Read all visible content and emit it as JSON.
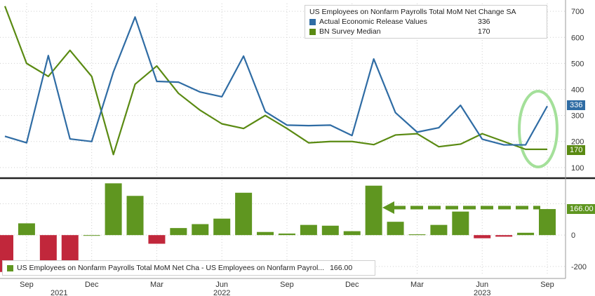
{
  "colors": {
    "actual": "#2f6ca4",
    "survey": "#5a8a12",
    "bar_pos": "#5f9620",
    "bar_neg": "#c1273b",
    "highlight": "#a4e09a"
  },
  "legend_top": {
    "title": "US Employees on Nonfarm Payrolls Total MoM Net Change SA",
    "entries": [
      {
        "label": "Actual Economic Release Values",
        "value": "336"
      },
      {
        "label": "BN Survey Median",
        "value": "170"
      }
    ]
  },
  "legend_bottom": {
    "label": "US Employees on Nonfarm Payrolls Total MoM Net Cha - US Employees on Nonfarm Payrol...",
    "value": "166.00"
  },
  "tags": {
    "actual": "336",
    "survey": "170",
    "diff": "166.00"
  },
  "chart_data": [
    {
      "type": "line",
      "x": [
        "2021-08",
        "2021-09",
        "2021-10",
        "2021-11",
        "2021-12",
        "2022-01",
        "2022-02",
        "2022-03",
        "2022-04",
        "2022-05",
        "2022-06",
        "2022-07",
        "2022-08",
        "2022-09",
        "2022-10",
        "2022-11",
        "2022-12",
        "2023-01",
        "2023-02",
        "2023-03",
        "2023-04",
        "2023-05",
        "2023-06",
        "2023-07",
        "2023-08",
        "2023-09"
      ],
      "series": [
        {
          "name": "Actual Economic Release Values",
          "values": [
            220,
            195,
            530,
            210,
            200,
            467,
            678,
            431,
            428,
            390,
            372,
            528,
            315,
            263,
            261,
            263,
            223,
            517,
            311,
            236,
            253,
            339,
            209,
            187,
            187,
            336
          ]
        },
        {
          "name": "BN Survey Median",
          "values": [
            720,
            500,
            450,
            550,
            450,
            150,
            420,
            490,
            385,
            320,
            268,
            250,
            300,
            250,
            195,
            200,
            200,
            188,
            225,
            230,
            180,
            190,
            230,
            200,
            170,
            170
          ]
        }
      ],
      "y_ticks": [
        "100",
        "200",
        "300",
        "400",
        "500",
        "600",
        "700"
      ],
      "ylim": [
        70,
        730
      ]
    },
    {
      "type": "bar",
      "x": [
        "2021-08",
        "2021-09",
        "2021-10",
        "2021-11",
        "2021-12",
        "2022-01",
        "2022-02",
        "2022-03",
        "2022-04",
        "2022-05",
        "2022-06",
        "2022-07",
        "2022-08",
        "2022-09",
        "2022-10",
        "2022-11",
        "2022-12",
        "2023-01",
        "2023-02",
        "2023-03",
        "2023-04",
        "2023-05",
        "2023-06",
        "2023-07",
        "2023-08",
        "2023-09"
      ],
      "series": [
        {
          "name": "US Employees on Nonfarm Payrolls Total MoM Net Cha - US Employees on Nonfarm Payrol...",
          "values": [
            -235,
            75,
            -235,
            -235,
            0,
            330,
            250,
            -55,
            45,
            70,
            105,
            270,
            20,
            10,
            65,
            60,
            25,
            315,
            85,
            5,
            65,
            150,
            -20,
            -10,
            15,
            166
          ]
        }
      ],
      "y_ticks": [
        "0",
        "-200"
      ],
      "ylim": [
        -245,
        345
      ]
    }
  ],
  "x_axis": {
    "month_labels": [
      {
        "label": "Sep",
        "i": 1
      },
      {
        "label": "Dec",
        "i": 4
      },
      {
        "label": "Mar",
        "i": 7
      },
      {
        "label": "Jun",
        "i": 10
      },
      {
        "label": "Sep",
        "i": 13
      },
      {
        "label": "Dec",
        "i": 16
      },
      {
        "label": "Mar",
        "i": 19
      },
      {
        "label": "Jun",
        "i": 22
      },
      {
        "label": "Sep",
        "i": 25
      }
    ],
    "year_labels": [
      {
        "label": "2021",
        "i": 2.5
      },
      {
        "label": "2022",
        "i": 10
      },
      {
        "label": "2023",
        "i": 22
      }
    ]
  }
}
